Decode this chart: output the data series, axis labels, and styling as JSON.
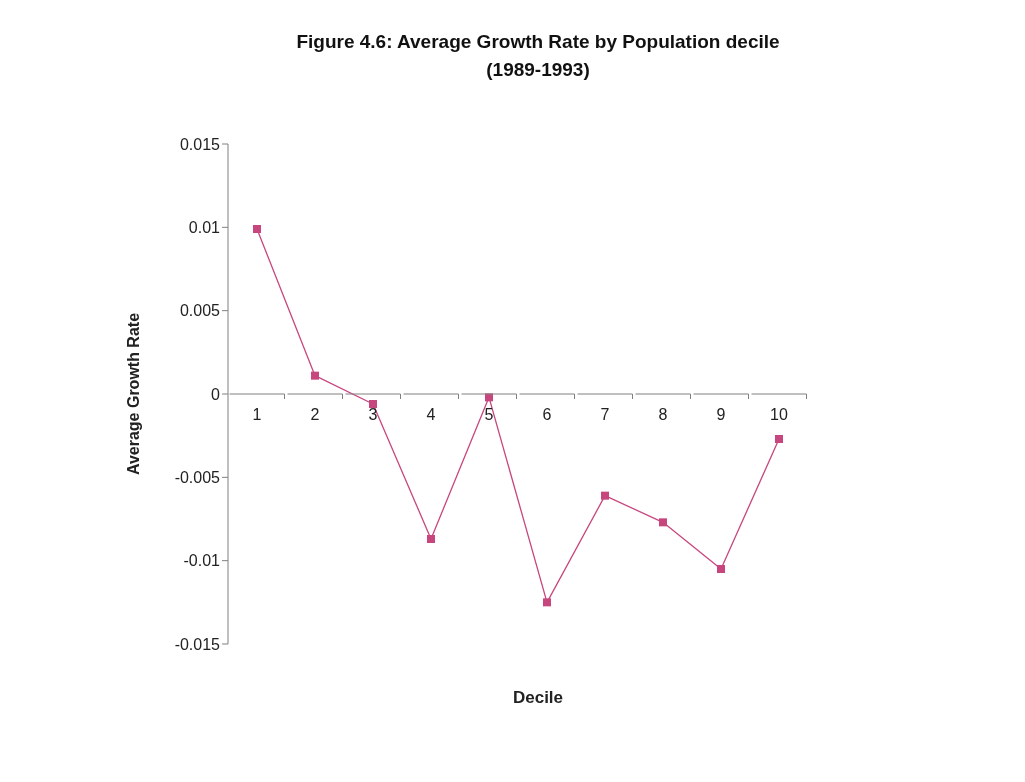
{
  "chart_data": {
    "type": "line",
    "title": "Figure 4.6: Average Growth Rate by Population decile\n(1989-1993)",
    "xlabel": "Decile",
    "ylabel": "Average Growth Rate",
    "categories": [
      "1",
      "2",
      "3",
      "4",
      "5",
      "6",
      "7",
      "8",
      "9",
      "10"
    ],
    "series": [
      {
        "color": "#c8467e",
        "values": [
          0.0099,
          0.0011,
          -0.0006,
          -0.0087,
          -0.0002,
          -0.0125,
          -0.0061,
          -0.0077,
          -0.0105,
          -0.0027
        ]
      }
    ],
    "ylim": [
      -0.015,
      0.015
    ],
    "yticks": [
      -0.015,
      -0.01,
      -0.005,
      0,
      0.005,
      0.01,
      0.015
    ],
    "grid": false,
    "marker": "square",
    "line_style": "solid"
  }
}
